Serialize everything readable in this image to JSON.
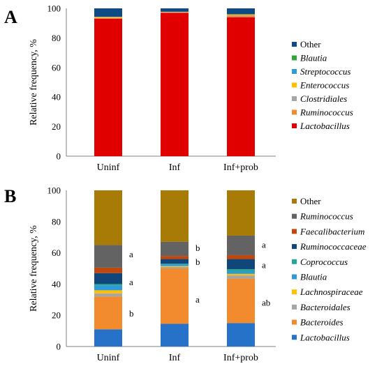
{
  "colors": {
    "Other_A": "#0e4a84",
    "Other_B": "#a77b06",
    "Lactobacillus": "#e00000",
    "Ruminococcus_A": "#f28a2e",
    "Clostridiales": "#a6a6a6",
    "Enterococcus": "#ffc000",
    "Streptococcus": "#2f9ad7",
    "Blautia_A": "#33a63b",
    "Lactobacillus_B": "#2672c8",
    "Bacteroides": "#f28a2e",
    "Bacteroidales": "#a6a6a6",
    "Lachnospiraceae": "#ffc000",
    "Blautia_B": "#2f9ad7",
    "Coprococcus": "#25a59a",
    "Ruminococcaceae": "#10467a",
    "Faecalibacterium": "#c0480c",
    "Ruminococcus_B": "#636363"
  },
  "chart_data": [
    {
      "panel": "A",
      "type": "bar",
      "stacked": true,
      "categories": [
        "Uninf",
        "Inf",
        "Inf+prob"
      ],
      "ylabel": "Relative frequency, %",
      "ylim": [
        0,
        100
      ],
      "yticks": [
        "0",
        "20",
        "40",
        "60",
        "80",
        "100"
      ],
      "legend_position": "right",
      "series": [
        {
          "name": "Lactobacillus",
          "italic": true,
          "color_key": "Lactobacillus",
          "values": [
            93,
            97,
            94
          ]
        },
        {
          "name": "Ruminococcus",
          "italic": true,
          "color_key": "Ruminococcus_A",
          "values": [
            0.5,
            0.3,
            1.0
          ]
        },
        {
          "name": "Clostridiales",
          "italic": true,
          "color_key": "Clostridiales",
          "values": [
            0.3,
            0.2,
            0.5
          ]
        },
        {
          "name": "Enterococcus",
          "italic": true,
          "color_key": "Enterococcus",
          "values": [
            0.5,
            0.2,
            0.5
          ]
        },
        {
          "name": "Streptococcus",
          "italic": true,
          "color_key": "Streptococcus",
          "values": [
            0,
            0,
            0
          ]
        },
        {
          "name": "Blautia",
          "italic": true,
          "color_key": "Blautia_A",
          "values": [
            0,
            0,
            0
          ]
        },
        {
          "name": "Other",
          "italic": false,
          "color_key": "Other_A",
          "values": [
            5.7,
            2.3,
            4.0
          ]
        }
      ],
      "annotations": []
    },
    {
      "panel": "B",
      "type": "bar",
      "stacked": true,
      "categories": [
        "Uninf",
        "Inf",
        "Inf+prob"
      ],
      "ylabel": "Relative frequency, %",
      "ylim": [
        0,
        100
      ],
      "yticks": [
        "0",
        "20",
        "40",
        "60",
        "80",
        "100"
      ],
      "legend_position": "right",
      "series": [
        {
          "name": "Lactobacillus",
          "italic": true,
          "color_key": "Lactobacillus_B",
          "values": [
            11,
            14.5,
            15
          ]
        },
        {
          "name": "Bacteroides",
          "italic": true,
          "color_key": "Bacteroides",
          "values": [
            21,
            35.5,
            28.5
          ]
        },
        {
          "name": "Bacteroidales",
          "italic": true,
          "color_key": "Bacteroidales",
          "values": [
            2,
            1.0,
            2
          ]
        },
        {
          "name": "Lachnospiraceae",
          "italic": true,
          "color_key": "Lachnospiraceae",
          "values": [
            2,
            0.5,
            1
          ]
        },
        {
          "name": "Blautia",
          "italic": true,
          "color_key": "Blautia_B",
          "values": [
            3,
            1.0,
            1.5
          ]
        },
        {
          "name": "Coprococcus",
          "italic": true,
          "color_key": "Coprococcus",
          "values": [
            1,
            0.5,
            1.5
          ]
        },
        {
          "name": "Ruminococcaceae",
          "italic": true,
          "color_key": "Ruminococcaceae",
          "values": [
            7,
            3,
            6.5
          ]
        },
        {
          "name": "Faecalibacterium",
          "italic": true,
          "color_key": "Faecalibacterium",
          "values": [
            3.5,
            2,
            2.5
          ]
        },
        {
          "name": "Ruminococcus",
          "italic": true,
          "color_key": "Ruminococcus_B",
          "values": [
            14.5,
            9,
            12.5
          ]
        },
        {
          "name": "Other",
          "italic": false,
          "color_key": "Other_B",
          "values": [
            35,
            33,
            29
          ]
        }
      ],
      "annotations": [
        {
          "text": "a",
          "category": 0,
          "y": 59
        },
        {
          "text": "a",
          "category": 0,
          "y": 41
        },
        {
          "text": "b",
          "category": 0,
          "y": 21
        },
        {
          "text": "b",
          "category": 1,
          "y": 63
        },
        {
          "text": "b",
          "category": 1,
          "y": 54
        },
        {
          "text": "a",
          "category": 1,
          "y": 30
        },
        {
          "text": "a",
          "category": 2,
          "y": 65
        },
        {
          "text": "a",
          "category": 2,
          "y": 52
        },
        {
          "text": "ab",
          "category": 2,
          "y": 28
        }
      ]
    }
  ],
  "panel_labels": [
    "A",
    "B"
  ]
}
